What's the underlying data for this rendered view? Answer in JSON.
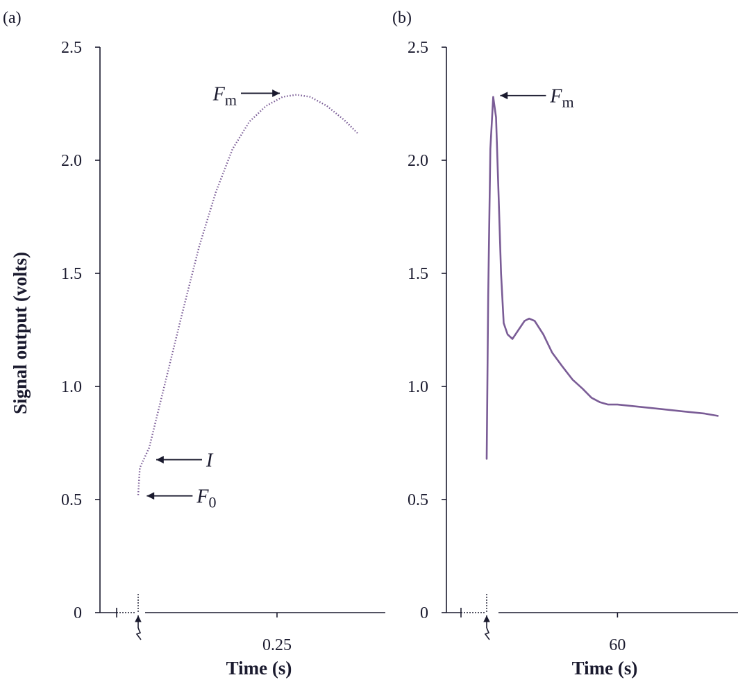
{
  "chart_data": [
    {
      "type": "line",
      "panel_label": "(a)",
      "xlabel": "Time (s)",
      "ylabel": "Signal output (volts)",
      "ylim": [
        0,
        2.5
      ],
      "xlim": [
        -0.1,
        0.4
      ],
      "y_ticks": [
        "0",
        "0.5",
        "1.0",
        "1.5",
        "2.0",
        "2.5"
      ],
      "x_tick": {
        "value": 0.25,
        "label": "0.25"
      },
      "line_style": "dotted",
      "line_color": "#7a5c96",
      "series": [
        {
          "x": [
            0.0,
            0.003,
            0.02,
            0.05,
            0.08,
            0.11,
            0.14,
            0.17,
            0.2,
            0.23,
            0.26,
            0.285,
            0.31,
            0.34,
            0.37,
            0.395
          ],
          "y": [
            0.52,
            0.64,
            0.73,
            1.03,
            1.33,
            1.62,
            1.86,
            2.05,
            2.17,
            2.24,
            2.28,
            2.29,
            2.28,
            2.24,
            2.18,
            2.12
          ]
        }
      ],
      "annotations": [
        {
          "label": "F",
          "sub": "m",
          "x": 0.285,
          "y": 2.29
        },
        {
          "label": "I",
          "sub": "",
          "x": 0.02,
          "y": 0.67
        },
        {
          "label": "F",
          "sub": "0",
          "x": 0.003,
          "y": 0.51
        }
      ],
      "grid": false
    },
    {
      "type": "line",
      "panel_label": "(b)",
      "xlabel": "Time (s)",
      "ylabel": "",
      "ylim": [
        0,
        2.5
      ],
      "xlim": [
        -12,
        105
      ],
      "y_ticks": [
        "0",
        "0.5",
        "1.0",
        "1.5",
        "2.0",
        "2.5"
      ],
      "x_tick": {
        "value": 60,
        "label": "60"
      },
      "line_style": "solid",
      "line_color": "#7a5c96",
      "series": [
        {
          "x": [
            0.0,
            0.7,
            1.7,
            3.0,
            4.3,
            5.4,
            6.6,
            7.8,
            9.6,
            11.8,
            14.6,
            17.4,
            19.5,
            22.0,
            26.0,
            30.0,
            34.6,
            39.4,
            44.0,
            48.1,
            52.0,
            55.7,
            60.0,
            70.0,
            80.0,
            90.0,
            100.0,
            106.0
          ],
          "y": [
            0.68,
            1.4,
            2.05,
            2.28,
            2.19,
            1.86,
            1.5,
            1.28,
            1.23,
            1.21,
            1.25,
            1.29,
            1.3,
            1.29,
            1.23,
            1.15,
            1.09,
            1.03,
            0.99,
            0.95,
            0.93,
            0.92,
            0.92,
            0.91,
            0.9,
            0.89,
            0.88,
            0.87
          ]
        }
      ],
      "annotations": [
        {
          "label": "F",
          "sub": "m",
          "x": 3.0,
          "y": 2.28
        }
      ],
      "grid": false
    }
  ]
}
